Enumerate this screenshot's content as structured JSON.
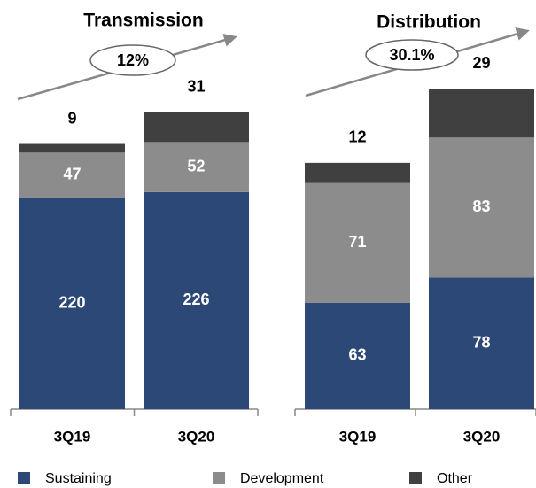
{
  "chart_data": [
    {
      "type": "stacked_bar",
      "title": "Transmission",
      "annotation": "12%",
      "categories": [
        "3Q19",
        "3Q20"
      ],
      "series": [
        {
          "name": "Sustaining",
          "color": "#2b4876",
          "values": [
            220,
            226
          ]
        },
        {
          "name": "Development",
          "color": "#8c8c8c",
          "values": [
            47,
            52
          ]
        },
        {
          "name": "Other",
          "color": "#404040",
          "values": [
            9,
            31
          ]
        }
      ]
    },
    {
      "type": "stacked_bar",
      "title": "Distribution",
      "annotation": "30.1%",
      "categories": [
        "3Q19",
        "3Q20"
      ],
      "series": [
        {
          "name": "Sustaining",
          "color": "#2b4876",
          "values": [
            63,
            78
          ]
        },
        {
          "name": "Development",
          "color": "#8c8c8c",
          "values": [
            71,
            83
          ]
        },
        {
          "name": "Other",
          "color": "#404040",
          "values": [
            12,
            29
          ]
        }
      ]
    }
  ]
}
